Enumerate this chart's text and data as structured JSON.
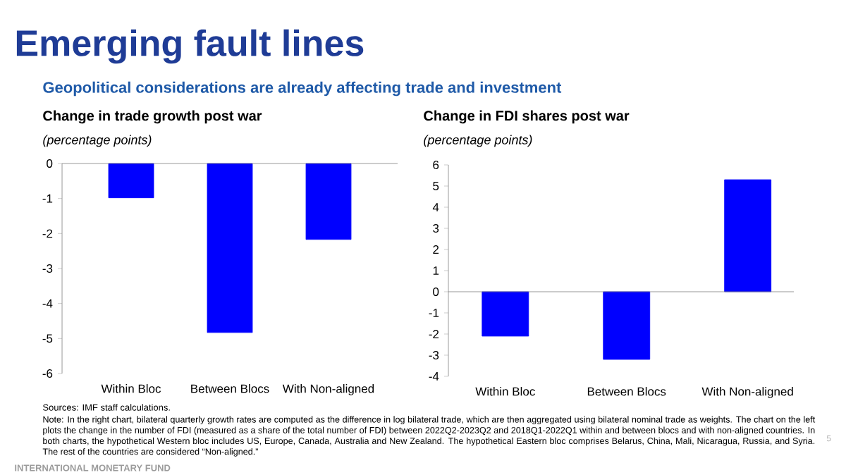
{
  "chart_data": [
    {
      "type": "bar",
      "title": "Change in trade growth post war",
      "ylabel": "(percentage points)",
      "categories": [
        "Within Bloc",
        "Between Blocs",
        "With Non-aligned"
      ],
      "values": [
        -0.98,
        -4.83,
        -2.17
      ],
      "color": "#0000ff",
      "ylim": [
        -6,
        0
      ],
      "yticks": [
        -6,
        -5,
        -4,
        -3,
        -2,
        -1,
        0
      ],
      "annotations": [
        "Emerging fault lines",
        "Geopolitical considerations are already affecting trade and investment",
        "Sources: IMF staff calculations.",
        "Note: In the right chart, bilateral quarterly growth rates are computed as the difference in log bilateral trade, which are then aggregated using bilateral nominal trade as weights. The chart on the left plots the change in the number of FDI (measured as a share of the total number of FDI) between 2022Q2-2023Q2 and 2018Q1-2022Q1 within and between blocs and with non-aligned countries. In both charts, the hypothetical Western bloc includes US, Europe, Canada, Australia and New Zealand. The hypothetical Eastern bloc comprises Belarus, China, Mali, Nicaragua, Russia, and Syria. The rest of the countries are considered “Non-aligned.”",
        "INTERNATIONAL MONETARY FUND",
        "5"
      ]
    },
    {
      "type": "bar",
      "title": "Change in FDI shares post war",
      "ylabel": "(percentage points)",
      "categories": [
        "Within Bloc",
        "Between Blocs",
        "With Non-aligned"
      ],
      "values": [
        -2.1,
        -3.2,
        5.3
      ],
      "color": "#0000ff",
      "ylim": [
        -4,
        6
      ],
      "yticks": [
        -4,
        -3,
        -2,
        -1,
        0,
        1,
        2,
        3,
        4,
        5,
        6
      ]
    }
  ]
}
